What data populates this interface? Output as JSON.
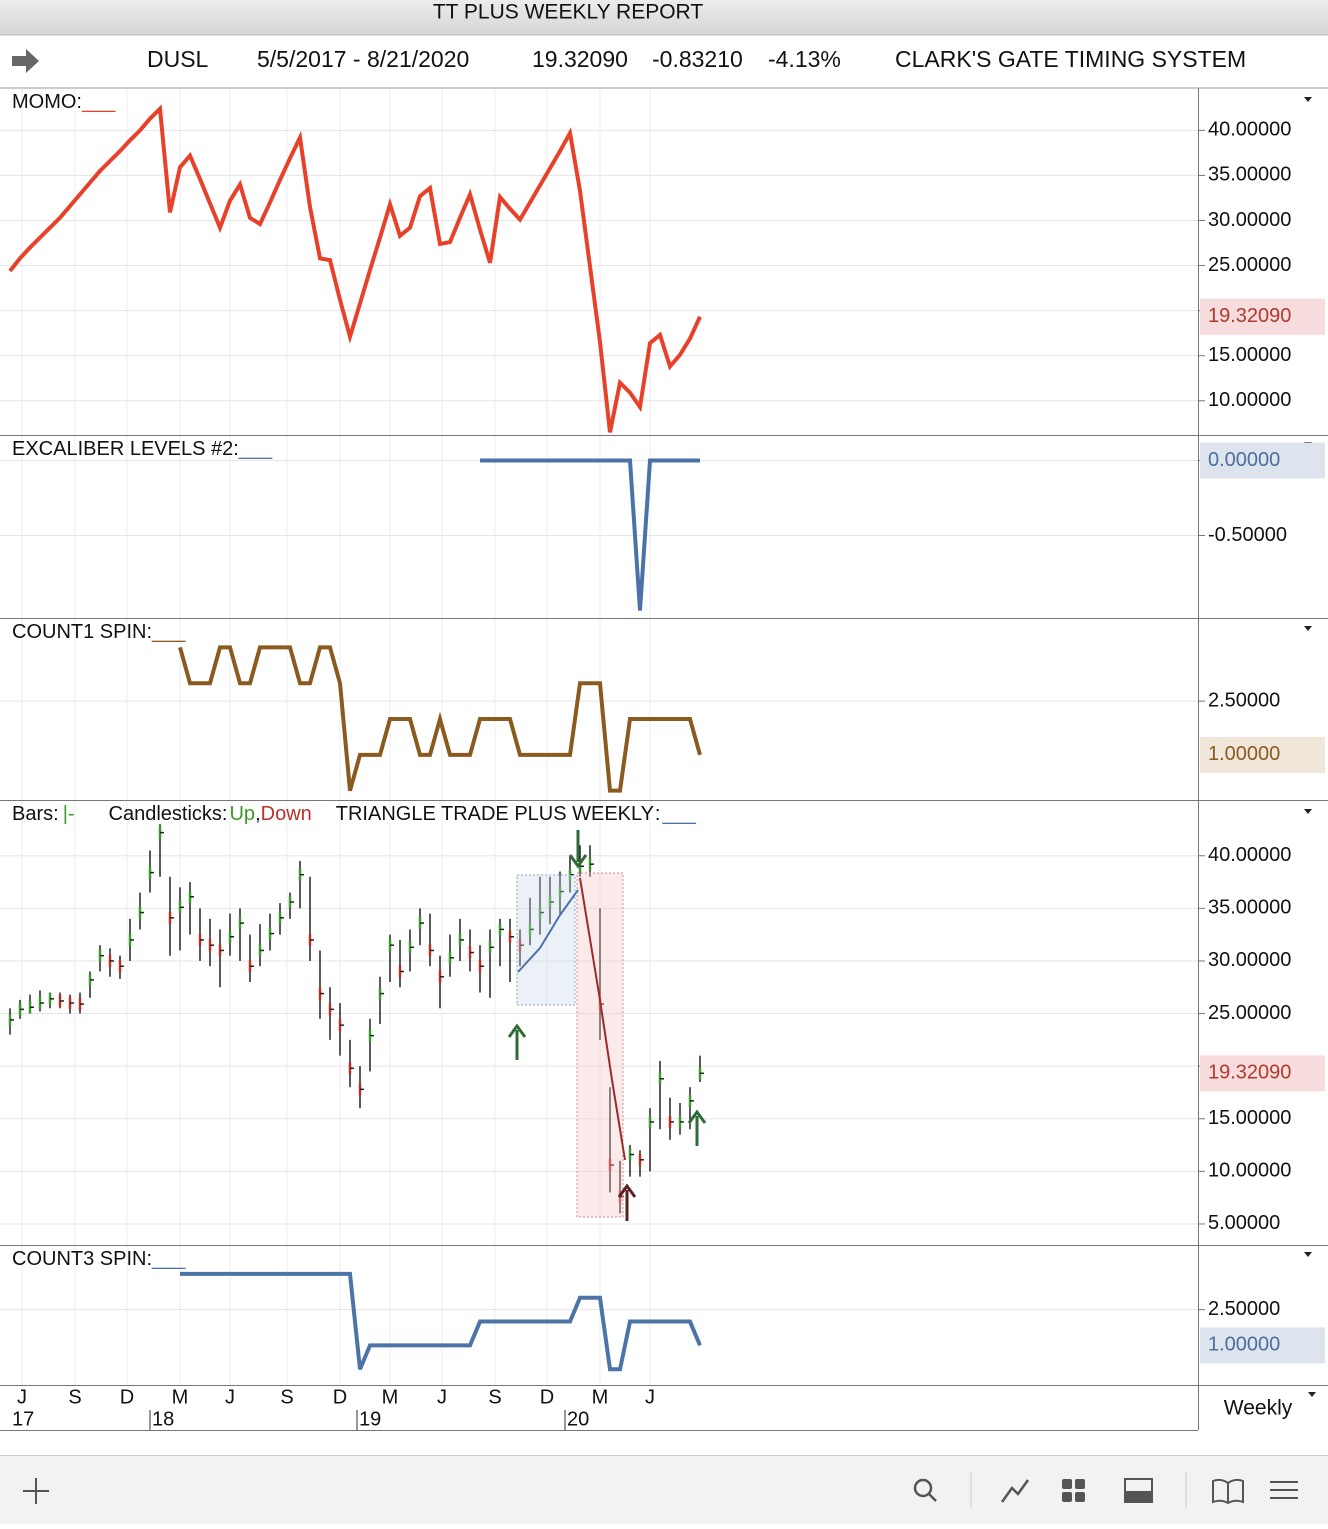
{
  "window": {
    "title": "TT PLUS WEEKLY REPORT"
  },
  "header": {
    "symbol": "DUSL",
    "range": "5/5/2017 - 8/21/2020",
    "last": "19.32090",
    "change": "-0.83210",
    "change_pct": "-4.13%",
    "system": "CLARK'S GATE TIMING SYSTEM"
  },
  "chart_data": [
    {
      "type": "line",
      "legend_marker": "___",
      "last_fill": "#f6dcdc",
      "last_text": "#b03a2e",
      "series": [
        {
          "name": "MOMO:",
          "color": "#e8412a",
          "values": [
            24.4,
            25.8,
            27.0,
            28.1,
            29.2,
            30.3,
            31.6,
            32.9,
            34.2,
            35.5,
            36.6,
            37.7,
            38.9,
            40.0,
            41.3,
            42.4,
            30.9,
            35.9,
            37.2,
            34.6,
            31.9,
            29.2,
            32.2,
            34.0,
            30.3,
            29.6,
            32.0,
            34.5,
            36.9,
            39.2,
            31.5,
            25.8,
            25.6,
            21.2,
            17.1,
            20.8,
            24.5,
            28.1,
            31.8,
            28.3,
            29.2,
            32.7,
            33.6,
            27.4,
            27.6,
            30.3,
            32.9,
            29.0,
            25.3,
            32.6,
            31.3,
            30.1,
            32.0,
            33.9,
            35.8,
            37.7,
            39.7,
            33.3,
            24.9,
            16.5,
            6.5,
            12.0,
            10.9,
            9.3,
            16.4,
            17.3,
            13.8,
            15.1,
            16.9,
            19.3209
          ]
        }
      ],
      "ylim": [
        6.2,
        44.7
      ],
      "yticks": [
        {
          "value": 10,
          "label": "10.00000"
        },
        {
          "value": 15,
          "label": "15.00000"
        },
        {
          "value": 20,
          "label": "20.00000"
        },
        {
          "value": 25,
          "label": "25.00000"
        },
        {
          "value": 30,
          "label": "30.00000"
        },
        {
          "value": 35,
          "label": "35.00000"
        },
        {
          "value": 40,
          "label": "40.00000"
        }
      ],
      "last_value": {
        "value": 19.3209,
        "label": "19.32090"
      }
    },
    {
      "type": "line",
      "legend_marker": "___",
      "last_fill": "#dde4ee",
      "last_text": "#4a6f9a",
      "series": [
        {
          "name": "EXCALIBER LEVELS #2:",
          "color": "#4a72a8",
          "values": [
            null,
            null,
            null,
            null,
            null,
            null,
            null,
            null,
            null,
            null,
            null,
            null,
            null,
            null,
            null,
            null,
            null,
            null,
            null,
            null,
            null,
            null,
            null,
            null,
            null,
            null,
            null,
            null,
            null,
            null,
            null,
            null,
            null,
            null,
            null,
            null,
            null,
            null,
            null,
            null,
            null,
            null,
            null,
            null,
            null,
            null,
            null,
            0,
            0,
            0,
            0,
            0,
            0,
            0,
            0,
            0,
            0,
            0,
            0,
            0,
            0,
            0,
            0,
            -1.0,
            0,
            0,
            0,
            0,
            0,
            0
          ]
        }
      ],
      "ylim": [
        -1.05,
        0.17
      ],
      "yticks": [
        {
          "value": 0,
          "label": "0.00000"
        },
        {
          "value": -0.5,
          "label": "-0.50000"
        }
      ],
      "last_value": {
        "value": 0,
        "label": "0.00000"
      }
    },
    {
      "type": "line",
      "legend_marker": "___",
      "last_fill": "#f1e6da",
      "last_text": "#8a5a1f",
      "series": [
        {
          "name": "COUNT1 SPIN:",
          "color": "#8b5a1e",
          "values": [
            null,
            null,
            null,
            null,
            null,
            null,
            null,
            null,
            null,
            null,
            null,
            null,
            null,
            null,
            null,
            null,
            null,
            4,
            3,
            3,
            3,
            4,
            4,
            3,
            3,
            4,
            4,
            4,
            4,
            3,
            3,
            4,
            4,
            3,
            0,
            1,
            1,
            1,
            2,
            2,
            2,
            1,
            1,
            2,
            1,
            1,
            1,
            2,
            2,
            2,
            2,
            1,
            1,
            1,
            1,
            1,
            1,
            3,
            3,
            3,
            0,
            0,
            2,
            2,
            2,
            2,
            2,
            2,
            2,
            1
          ]
        }
      ],
      "ylim": [
        -0.26,
        4.82
      ],
      "yticks": [
        {
          "value": 2.5,
          "label": "2.50000"
        }
      ],
      "last_value": {
        "value": 1,
        "label": "1.00000"
      }
    },
    {
      "type": "ohlc",
      "last_fill": "#f6dcdc",
      "last_text": "#b03a2e",
      "legend": {
        "bars": "Bars:",
        "bars_symbol": "|-",
        "candles": "Candlesticks:",
        "up": "Up",
        "separator": ",",
        "down": "Down",
        "study": "TRIANGLE TRADE PLUS WEEKLY",
        "colon": ":",
        "marker": "___"
      },
      "up_color": "#3d9a2e",
      "down_color": "#b8322a",
      "bar_color": "#222222",
      "study_color": "#4a72a8",
      "close": [
        24.4,
        25.4,
        25.6,
        26.0,
        26.4,
        26.2,
        26.0,
        25.9,
        28.2,
        30.5,
        30.0,
        29.5,
        32.0,
        34.6,
        38.4,
        42.2,
        34.1,
        35.1,
        36.1,
        32.0,
        31.5,
        31.0,
        32.3,
        33.6,
        29.5,
        31.0,
        32.6,
        34.1,
        35.6,
        38.2,
        32.0,
        26.9,
        25.4,
        23.9,
        19.8,
        17.8,
        22.9,
        26.9,
        31.5,
        29.0,
        31.3,
        33.6,
        31.0,
        28.5,
        30.3,
        32.0,
        30.8,
        29.5,
        31.3,
        33.0,
        32.3,
        31.5,
        33.0,
        34.6,
        35.6,
        36.6,
        38.2,
        39.0,
        39.2,
        25.9,
        10.6,
        7.6,
        11.6,
        11.1,
        14.7,
        18.8,
        14.7,
        14.7,
        16.7,
        19.3209
      ],
      "high": [
        25.5,
        26.3,
        26.8,
        27.2,
        27.0,
        27.0,
        26.8,
        27.0,
        29.0,
        31.5,
        31.2,
        30.5,
        34.0,
        36.5,
        40.5,
        43.0,
        38.0,
        37.0,
        37.5,
        35.0,
        34.0,
        33.0,
        34.5,
        35.0,
        32.5,
        33.5,
        34.5,
        35.5,
        36.5,
        39.5,
        38.0,
        31.0,
        27.5,
        26.0,
        22.5,
        20.0,
        24.5,
        28.5,
        32.5,
        32.0,
        33.0,
        35.0,
        34.5,
        30.5,
        32.5,
        34.0,
        33.0,
        31.5,
        33.0,
        34.0,
        34.0,
        33.0,
        36.0,
        38.0,
        38.0,
        38.5,
        40.0,
        41.0,
        41.0,
        35.0,
        18.0,
        11.0,
        12.5,
        12.0,
        16.0,
        20.5,
        17.0,
        16.5,
        18.0,
        21.0
      ],
      "low": [
        23.0,
        24.5,
        25.0,
        25.2,
        25.5,
        25.5,
        25.0,
        25.0,
        26.5,
        29.0,
        28.5,
        28.3,
        30.0,
        33.0,
        36.5,
        38.0,
        30.5,
        31.0,
        32.5,
        30.0,
        29.5,
        27.5,
        30.5,
        30.0,
        28.0,
        29.5,
        31.0,
        32.5,
        34.0,
        35.0,
        30.0,
        24.5,
        22.5,
        21.0,
        18.0,
        16.0,
        19.5,
        24.0,
        28.0,
        27.5,
        29.0,
        31.5,
        29.5,
        25.5,
        28.5,
        30.0,
        29.0,
        27.0,
        26.5,
        29.5,
        28.0,
        29.5,
        31.5,
        32.5,
        33.5,
        34.5,
        36.5,
        38.0,
        38.0,
        22.5,
        8.0,
        6.0,
        9.5,
        9.5,
        10.0,
        14.0,
        13.0,
        13.5,
        14.0,
        18.5
      ],
      "ylim": [
        3.0,
        45.3
      ],
      "yticks": [
        {
          "value": 5,
          "label": "5.00000"
        },
        {
          "value": 10,
          "label": "10.00000"
        },
        {
          "value": 15,
          "label": "15.00000"
        },
        {
          "value": 20,
          "label": "20.00000"
        },
        {
          "value": 25,
          "label": "25.00000"
        },
        {
          "value": 30,
          "label": "30.00000"
        },
        {
          "value": 35,
          "label": "35.00000"
        },
        {
          "value": 40,
          "label": "40.00000"
        }
      ],
      "last_value": {
        "value": 19.3209,
        "label": "19.32090"
      }
    },
    {
      "type": "line",
      "legend_marker": "___",
      "last_fill": "#dde4ee",
      "last_text": "#4a6f9a",
      "series": [
        {
          "name": "COUNT3 SPIN:",
          "color": "#4d74a6",
          "values": [
            null,
            null,
            null,
            null,
            null,
            null,
            null,
            null,
            null,
            null,
            null,
            null,
            null,
            null,
            null,
            null,
            null,
            4,
            4,
            4,
            4,
            4,
            4,
            4,
            4,
            4,
            4,
            4,
            4,
            4,
            4,
            4,
            4,
            4,
            4,
            0,
            1,
            1,
            1,
            1,
            1,
            1,
            1,
            1,
            1,
            1,
            1,
            2,
            2,
            2,
            2,
            2,
            2,
            2,
            2,
            2,
            2,
            3,
            3,
            3,
            0,
            0,
            2,
            2,
            2,
            2,
            2,
            2,
            2,
            1
          ]
        }
      ],
      "ylim": [
        -0.66,
        5.21
      ],
      "yticks": [
        {
          "value": 2.5,
          "label": "2.50000"
        }
      ],
      "last_value": {
        "value": 1,
        "label": "1.00000"
      }
    }
  ],
  "time_axis": {
    "months": [
      "J",
      "S",
      "D",
      "M",
      "J",
      "S",
      "D",
      "M",
      "J",
      "S",
      "D",
      "M",
      "J"
    ],
    "years": [
      "17",
      "18",
      "19",
      "20"
    ]
  },
  "footer": {
    "period": "Weekly"
  }
}
